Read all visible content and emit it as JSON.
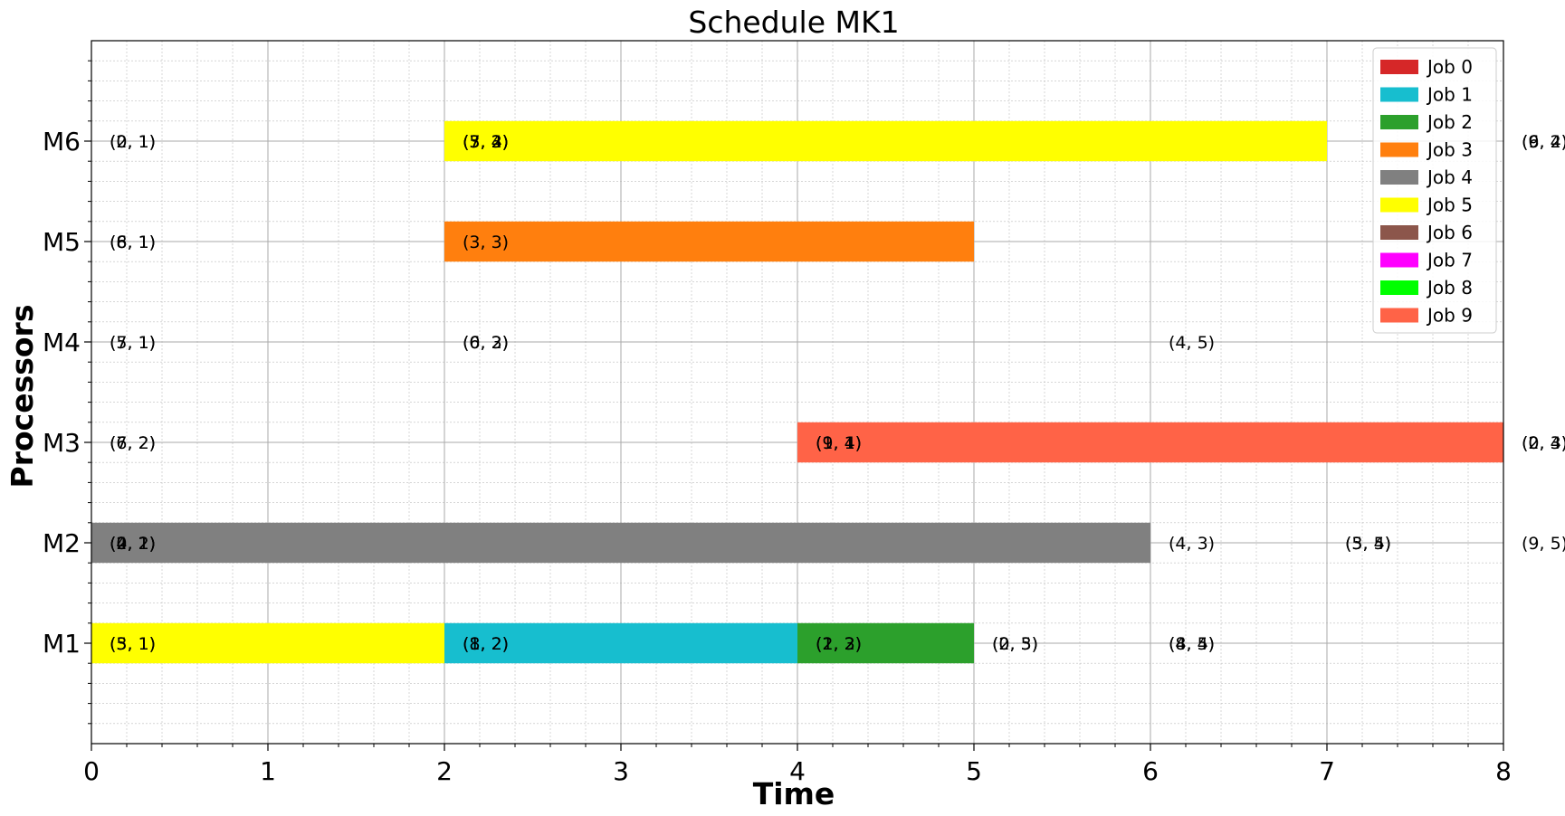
{
  "chart_data": {
    "type": "gantt",
    "title": "Schedule MK1",
    "xlabel": "Time",
    "ylabel": "Processors",
    "xlim": [
      0,
      8
    ],
    "xticks": [
      "0",
      "1",
      "2",
      "3",
      "4",
      "5",
      "6",
      "7",
      "8"
    ],
    "grid": true,
    "legend_position": "top-right",
    "machines": [
      "M1",
      "M2",
      "M3",
      "M4",
      "M5",
      "M6"
    ],
    "jobs": [
      {
        "name": "Job 0",
        "color": "#d62728"
      },
      {
        "name": "Job 1",
        "color": "#17becf"
      },
      {
        "name": "Job 2",
        "color": "#2ca02c"
      },
      {
        "name": "Job 3",
        "color": "#ff7f0e"
      },
      {
        "name": "Job 4",
        "color": "#808080"
      },
      {
        "name": "Job 5",
        "color": "#ffff00"
      },
      {
        "name": "Job 6",
        "color": "#8c564b"
      },
      {
        "name": "Job 7",
        "color": "#ff00ff"
      },
      {
        "name": "Job 8",
        "color": "#00ff00"
      },
      {
        "name": "Job 9",
        "color": "#ff6347"
      }
    ],
    "bars": [
      {
        "machine": "M1",
        "job": 5,
        "start": 0,
        "end": 2
      },
      {
        "machine": "M1",
        "job": 1,
        "start": 2,
        "end": 4
      },
      {
        "machine": "M1",
        "job": 2,
        "start": 4,
        "end": 5
      },
      {
        "machine": "M2",
        "job": 4,
        "start": 0,
        "end": 6
      },
      {
        "machine": "M3",
        "job": 9,
        "start": 4,
        "end": 8
      },
      {
        "machine": "M5",
        "job": 3,
        "start": 2,
        "end": 5
      },
      {
        "machine": "M6",
        "job": 5,
        "start": 2,
        "end": 7
      }
    ],
    "labels": [
      {
        "machine": "M6",
        "x": 0,
        "texts": [
          "(2, 1)",
          "(0, 1)"
        ]
      },
      {
        "machine": "M6",
        "x": 2,
        "texts": [
          "(7, 2)",
          "(5, 3)",
          "(3, 4)"
        ]
      },
      {
        "machine": "M6",
        "x": 8,
        "texts": [
          "(6, 4)",
          "(9, 2)"
        ]
      },
      {
        "machine": "M5",
        "x": 0,
        "texts": [
          "(6, 1)",
          "(8, 1)"
        ]
      },
      {
        "machine": "M5",
        "x": 2,
        "texts": [
          "(3, 3)"
        ]
      },
      {
        "machine": "M4",
        "x": 0,
        "texts": [
          "(7, 1)",
          "(5, 1)"
        ]
      },
      {
        "machine": "M4",
        "x": 2,
        "texts": [
          "(0, 3)",
          "(6, 2)"
        ]
      },
      {
        "machine": "M4",
        "x": 6,
        "texts": [
          "(4, 5)"
        ]
      },
      {
        "machine": "M3",
        "x": 0,
        "texts": [
          "(7, 2)",
          "(6, 2)"
        ]
      },
      {
        "machine": "M3",
        "x": 4,
        "texts": [
          "(9, 1)",
          "(1, 4)"
        ]
      },
      {
        "machine": "M3",
        "x": 8,
        "texts": [
          "(2, 3)",
          "(0, 4)"
        ]
      },
      {
        "machine": "M2",
        "x": 0,
        "texts": [
          "(4, 1)",
          "(2, 2)",
          "(0, 2)"
        ]
      },
      {
        "machine": "M2",
        "x": 6,
        "texts": [
          "(4, 3)"
        ]
      },
      {
        "machine": "M2",
        "x": 7,
        "texts": [
          "(3, 5)",
          "(5, 4)"
        ]
      },
      {
        "machine": "M2",
        "x": 8,
        "texts": [
          "(9, 5)"
        ]
      },
      {
        "machine": "M1",
        "x": 0,
        "texts": [
          "(5, 1)",
          "(3, 1)"
        ]
      },
      {
        "machine": "M1",
        "x": 2,
        "texts": [
          "(1, 2)",
          "(8, 2)"
        ]
      },
      {
        "machine": "M1",
        "x": 4,
        "texts": [
          "(1, 3)",
          "(2, 2)"
        ]
      },
      {
        "machine": "M1",
        "x": 5,
        "texts": [
          "(2, 3)",
          "(0, 5)"
        ]
      },
      {
        "machine": "M1",
        "x": 6,
        "texts": [
          "(4, 4)",
          "(8, 5)"
        ]
      }
    ]
  }
}
